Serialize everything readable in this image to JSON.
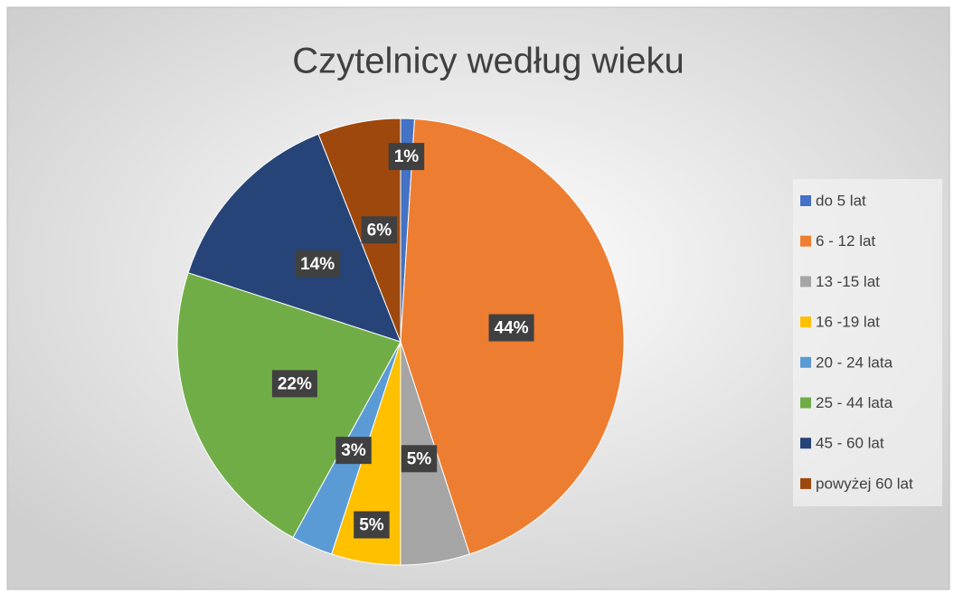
{
  "chart_data": {
    "type": "pie",
    "title": "Czytelnicy według wieku",
    "categories": [
      "do 5 lat",
      "6 - 12 lat",
      "13 -15 lat",
      "16 -19 lat",
      "20 - 24 lata",
      "25 - 44 lata",
      "45 - 60 lat",
      "powyżej 60 lat"
    ],
    "values": [
      1,
      44,
      5,
      5,
      3,
      22,
      14,
      6
    ],
    "value_labels": [
      "1%",
      "44%",
      "5%",
      "5%",
      "3%",
      "22%",
      "14%",
      "6%"
    ],
    "colors": [
      "#4472c4",
      "#ed7d31",
      "#a5a5a5",
      "#ffc000",
      "#5b9bd5",
      "#70ad47",
      "#264478",
      "#9e480e"
    ],
    "legend": "right"
  }
}
